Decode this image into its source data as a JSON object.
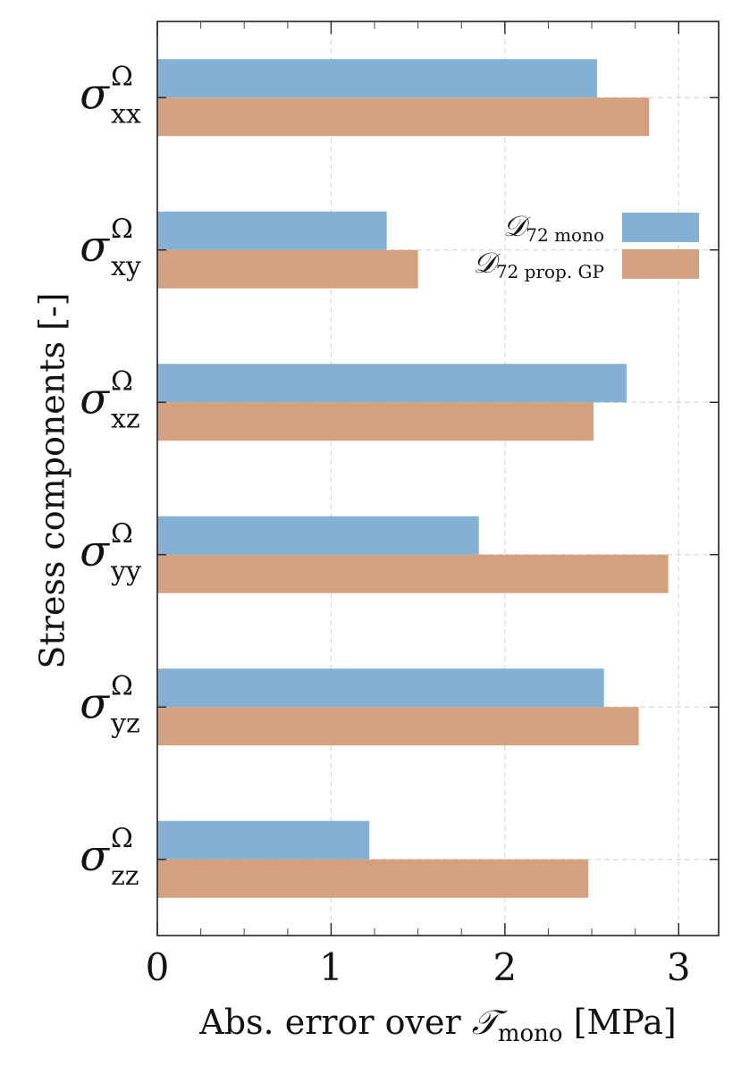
{
  "chart_data": {
    "type": "bar",
    "orientation": "horizontal",
    "categories": [
      {
        "sym": "σ",
        "sup": "Ω",
        "sub": "xx"
      },
      {
        "sym": "σ",
        "sup": "Ω",
        "sub": "xy"
      },
      {
        "sym": "σ",
        "sup": "Ω",
        "sub": "xz"
      },
      {
        "sym": "σ",
        "sup": "Ω",
        "sub": "yy"
      },
      {
        "sym": "σ",
        "sup": "Ω",
        "sub": "yz"
      },
      {
        "sym": "σ",
        "sup": "Ω",
        "sub": "zz"
      }
    ],
    "series": [
      {
        "name": "mono",
        "legend_main": "𝒟",
        "legend_sub": "72 mono",
        "color": "#82b1d4",
        "values": [
          2.53,
          1.32,
          2.7,
          1.85,
          2.57,
          1.22
        ]
      },
      {
        "name": "prop.GP",
        "legend_main": "𝒟",
        "legend_sub": "72 prop. GP",
        "color": "#d3a17e",
        "values": [
          2.83,
          1.5,
          2.51,
          2.94,
          2.77,
          2.48
        ]
      }
    ],
    "xlim": [
      0,
      3.23
    ],
    "xticks": [
      0,
      1,
      2,
      3
    ],
    "xticks_labels": [
      "0",
      "1",
      "2",
      "3"
    ],
    "xlabel": {
      "prefix": "Abs. error over ",
      "main": "𝒯",
      "sub": "mono",
      "suffix": " [MPa]"
    },
    "ylabel": "Stress components [-]",
    "grid": true,
    "legend_position": "upper-right"
  }
}
